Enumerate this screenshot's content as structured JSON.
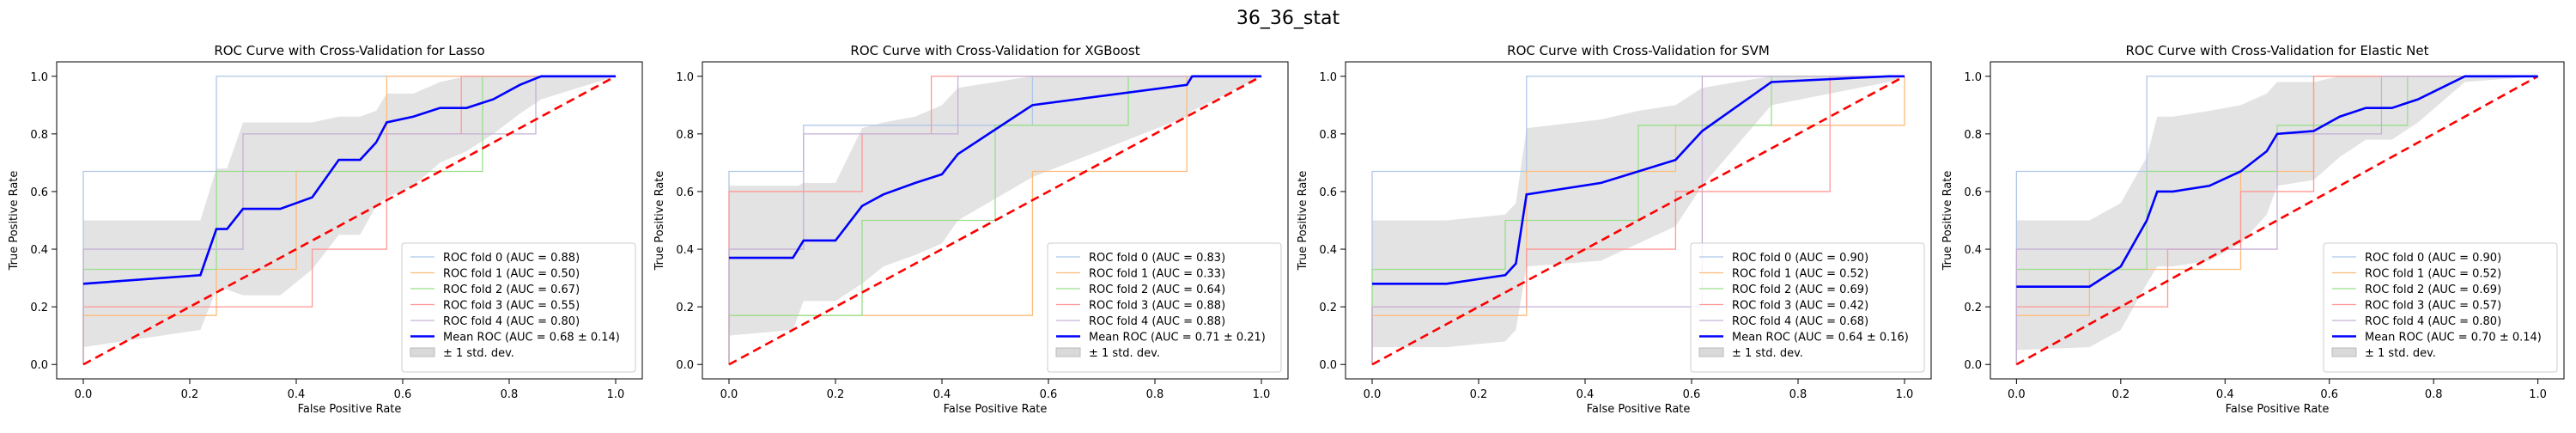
{
  "figure": {
    "suptitle": "36_36_stat"
  },
  "chart_data": [
    {
      "type": "line",
      "title": "ROC Curve with Cross-Validation for Lasso",
      "xlabel": "False Positive Rate",
      "ylabel": "True Positive Rate",
      "xlim": [
        -0.05,
        1.05
      ],
      "ylim": [
        -0.05,
        1.05
      ],
      "xticks": [
        "0.0",
        "0.2",
        "0.4",
        "0.6",
        "0.8",
        "1.0"
      ],
      "yticks": [
        "0.0",
        "0.2",
        "0.4",
        "0.6",
        "0.8",
        "1.0"
      ],
      "legend_position": "lower right",
      "series": [
        {
          "name": "ROC fold 0 (AUC = 0.88)",
          "color": "#aec7e8",
          "x": [
            0,
            0,
            0.25,
            0.25,
            0.55,
            0.55,
            1
          ],
          "y": [
            0,
            0.67,
            0.67,
            1,
            1,
            1,
            1
          ]
        },
        {
          "name": "ROC fold 1 (AUC = 0.50)",
          "color": "#ffbb78",
          "x": [
            0,
            0,
            0.25,
            0.25,
            0.4,
            0.4,
            0.57,
            0.57,
            1
          ],
          "y": [
            0,
            0.17,
            0.17,
            0.33,
            0.33,
            0.67,
            0.67,
            1,
            1
          ]
        },
        {
          "name": "ROC fold 2 (AUC = 0.67)",
          "color": "#98df8a",
          "x": [
            0,
            0,
            0.25,
            0.25,
            0.5,
            0.5,
            0.75,
            0.75,
            1
          ],
          "y": [
            0,
            0.33,
            0.33,
            0.67,
            0.67,
            0.67,
            0.67,
            1,
            1
          ]
        },
        {
          "name": "ROC fold 3 (AUC = 0.55)",
          "color": "#ff9896",
          "x": [
            0,
            0,
            0.14,
            0.14,
            0.43,
            0.43,
            0.57,
            0.57,
            0.71,
            0.71,
            1
          ],
          "y": [
            0,
            0.2,
            0.2,
            0.2,
            0.2,
            0.4,
            0.4,
            0.8,
            0.8,
            1,
            1
          ]
        },
        {
          "name": "ROC fold 4 (AUC = 0.80)",
          "color": "#c5b0d5",
          "x": [
            0,
            0,
            0.3,
            0.3,
            0.6,
            0.6,
            0.85,
            0.85,
            1
          ],
          "y": [
            0,
            0.4,
            0.4,
            0.8,
            0.8,
            0.8,
            0.8,
            1,
            1
          ]
        }
      ],
      "mean": {
        "name": "Mean ROC (AUC = 0.68 ± 0.14)",
        "color": "#0000ff",
        "x": [
          0,
          0.22,
          0.25,
          0.27,
          0.3,
          0.37,
          0.43,
          0.48,
          0.52,
          0.55,
          0.57,
          0.62,
          0.67,
          0.72,
          0.77,
          0.82,
          0.86,
          1
        ],
        "y": [
          0.28,
          0.31,
          0.47,
          0.47,
          0.54,
          0.54,
          0.58,
          0.71,
          0.71,
          0.77,
          0.84,
          0.86,
          0.89,
          0.89,
          0.92,
          0.97,
          1,
          1
        ]
      },
      "std": {
        "name": "± 1 std. dev.",
        "color": "#d9d9d9",
        "upper": [
          0.5,
          0.5,
          0.68,
          0.68,
          0.84,
          0.84,
          0.84,
          0.86,
          0.86,
          0.88,
          0.94,
          0.94,
          0.98,
          1,
          1,
          1,
          1,
          1
        ],
        "lower": [
          0.06,
          0.12,
          0.26,
          0.26,
          0.24,
          0.24,
          0.33,
          0.45,
          0.45,
          0.55,
          0.58,
          0.62,
          0.7,
          0.74,
          0.8,
          0.87,
          0.92,
          1
        ]
      },
      "chance": {
        "color": "#ff0000"
      }
    },
    {
      "type": "line",
      "title": "ROC Curve with Cross-Validation for XGBoost",
      "xlabel": "False Positive Rate",
      "ylabel": "True Positive Rate",
      "xlim": [
        -0.05,
        1.05
      ],
      "ylim": [
        -0.05,
        1.05
      ],
      "xticks": [
        "0.0",
        "0.2",
        "0.4",
        "0.6",
        "0.8",
        "1.0"
      ],
      "yticks": [
        "0.0",
        "0.2",
        "0.4",
        "0.6",
        "0.8",
        "1.0"
      ],
      "legend_position": "lower right",
      "series": [
        {
          "name": "ROC fold 0 (AUC = 0.83)",
          "color": "#aec7e8",
          "x": [
            0,
            0,
            0.14,
            0.14,
            0.43,
            0.43,
            0.57,
            0.57,
            1
          ],
          "y": [
            0,
            0.67,
            0.67,
            0.83,
            0.83,
            0.83,
            0.83,
            1,
            1
          ]
        },
        {
          "name": "ROC fold 1 (AUC = 0.33)",
          "color": "#ffbb78",
          "x": [
            0,
            0,
            0.57,
            0.57,
            0.86,
            0.86,
            1
          ],
          "y": [
            0,
            0.17,
            0.17,
            0.67,
            0.67,
            1,
            1
          ]
        },
        {
          "name": "ROC fold 2 (AUC = 0.64)",
          "color": "#98df8a",
          "x": [
            0,
            0,
            0.25,
            0.25,
            0.5,
            0.5,
            0.75,
            0.75,
            1
          ],
          "y": [
            0,
            0.17,
            0.17,
            0.5,
            0.5,
            0.83,
            0.83,
            1,
            1
          ]
        },
        {
          "name": "ROC fold 3 (AUC = 0.88)",
          "color": "#ff9896",
          "x": [
            0,
            0,
            0.25,
            0.25,
            0.38,
            0.38,
            1
          ],
          "y": [
            0,
            0.6,
            0.6,
            0.8,
            0.8,
            1,
            1
          ]
        },
        {
          "name": "ROC fold 4 (AUC = 0.88)",
          "color": "#c5b0d5",
          "x": [
            0,
            0,
            0.14,
            0.14,
            0.43,
            0.43,
            1
          ],
          "y": [
            0,
            0.4,
            0.4,
            0.8,
            0.8,
            1,
            1
          ]
        }
      ],
      "mean": {
        "name": "Mean ROC (AUC = 0.71 ± 0.21)",
        "color": "#0000ff",
        "x": [
          0,
          0.12,
          0.13,
          0.14,
          0.2,
          0.25,
          0.29,
          0.35,
          0.4,
          0.43,
          0.57,
          0.86,
          0.87,
          1
        ],
        "y": [
          0.37,
          0.37,
          0.4,
          0.43,
          0.43,
          0.55,
          0.59,
          0.63,
          0.66,
          0.73,
          0.9,
          0.97,
          1,
          1
        ]
      },
      "std": {
        "name": "± 1 std. dev.",
        "color": "#d9d9d9",
        "upper": [
          0.62,
          0.62,
          0.62,
          0.63,
          0.63,
          0.82,
          0.84,
          0.86,
          0.9,
          0.96,
          1,
          1,
          1,
          1
        ],
        "lower": [
          0.1,
          0.12,
          0.17,
          0.22,
          0.22,
          0.28,
          0.34,
          0.38,
          0.42,
          0.5,
          0.65,
          0.86,
          0.88,
          1
        ]
      },
      "chance": {
        "color": "#ff0000"
      }
    },
    {
      "type": "line",
      "title": "ROC Curve with Cross-Validation for SVM",
      "xlabel": "False Positive Rate",
      "ylabel": "True Positive Rate",
      "xlim": [
        -0.05,
        1.05
      ],
      "ylim": [
        -0.05,
        1.05
      ],
      "xticks": [
        "0.0",
        "0.2",
        "0.4",
        "0.6",
        "0.8",
        "1.0"
      ],
      "yticks": [
        "0.0",
        "0.2",
        "0.4",
        "0.6",
        "0.8",
        "1.0"
      ],
      "legend_position": "lower right",
      "series": [
        {
          "name": "ROC fold 0 (AUC = 0.90)",
          "color": "#aec7e8",
          "x": [
            0,
            0,
            0.29,
            0.29,
            1
          ],
          "y": [
            0,
            0.67,
            0.67,
            1,
            1
          ]
        },
        {
          "name": "ROC fold 1 (AUC = 0.52)",
          "color": "#ffbb78",
          "x": [
            0,
            0,
            0.29,
            0.29,
            0.57,
            0.57,
            1,
            1
          ],
          "y": [
            0,
            0.17,
            0.17,
            0.67,
            0.67,
            0.83,
            0.83,
            1
          ]
        },
        {
          "name": "ROC fold 2 (AUC = 0.69)",
          "color": "#98df8a",
          "x": [
            0,
            0,
            0.25,
            0.25,
            0.5,
            0.5,
            0.75,
            0.75,
            1
          ],
          "y": [
            0,
            0.33,
            0.33,
            0.5,
            0.5,
            0.83,
            0.83,
            1,
            1
          ]
        },
        {
          "name": "ROC fold 3 (AUC = 0.42)",
          "color": "#ff9896",
          "x": [
            0,
            0,
            0.29,
            0.29,
            0.57,
            0.57,
            0.86,
            0.86,
            1
          ],
          "y": [
            0,
            0.2,
            0.2,
            0.4,
            0.4,
            0.6,
            0.6,
            1,
            1
          ]
        },
        {
          "name": "ROC fold 4 (AUC = 0.68)",
          "color": "#c5b0d5",
          "x": [
            0,
            0,
            0.62,
            0.62,
            1
          ],
          "y": [
            0,
            0.2,
            0.2,
            1,
            1
          ]
        }
      ],
      "mean": {
        "name": "Mean ROC (AUC = 0.64 ± 0.16)",
        "color": "#0000ff",
        "x": [
          0,
          0.14,
          0.25,
          0.27,
          0.29,
          0.43,
          0.5,
          0.57,
          0.62,
          0.75,
          0.97,
          1
        ],
        "y": [
          0.28,
          0.28,
          0.31,
          0.35,
          0.59,
          0.63,
          0.67,
          0.71,
          0.81,
          0.98,
          1,
          1
        ]
      },
      "std": {
        "name": "± 1 std. dev.",
        "color": "#d9d9d9",
        "upper": [
          0.5,
          0.5,
          0.52,
          0.56,
          0.82,
          0.85,
          0.88,
          0.9,
          0.96,
          1,
          1,
          1
        ],
        "lower": [
          0.06,
          0.06,
          0.08,
          0.12,
          0.34,
          0.36,
          0.42,
          0.48,
          0.62,
          0.9,
          0.98,
          1
        ]
      },
      "chance": {
        "color": "#ff0000"
      }
    },
    {
      "type": "line",
      "title": "ROC Curve with Cross-Validation for Elastic Net",
      "xlabel": "False Positive Rate",
      "ylabel": "True Positive Rate",
      "xlim": [
        -0.05,
        1.05
      ],
      "ylim": [
        -0.05,
        1.05
      ],
      "xticks": [
        "0.0",
        "0.2",
        "0.4",
        "0.6",
        "0.8",
        "1.0"
      ],
      "yticks": [
        "0.0",
        "0.2",
        "0.4",
        "0.6",
        "0.8",
        "1.0"
      ],
      "legend_position": "lower right",
      "series": [
        {
          "name": "ROC fold 0 (AUC = 0.90)",
          "color": "#aec7e8",
          "x": [
            0,
            0,
            0.25,
            0.25,
            1
          ],
          "y": [
            0,
            0.67,
            0.67,
            1,
            1
          ]
        },
        {
          "name": "ROC fold 1 (AUC = 0.52)",
          "color": "#ffbb78",
          "x": [
            0,
            0,
            0.14,
            0.14,
            0.43,
            0.43,
            0.57,
            0.57,
            1
          ],
          "y": [
            0,
            0.17,
            0.17,
            0.33,
            0.33,
            0.67,
            0.67,
            1,
            1
          ]
        },
        {
          "name": "ROC fold 2 (AUC = 0.69)",
          "color": "#98df8a",
          "x": [
            0,
            0,
            0.25,
            0.25,
            0.5,
            0.5,
            0.75,
            0.75,
            1
          ],
          "y": [
            0,
            0.33,
            0.33,
            0.67,
            0.67,
            0.83,
            0.83,
            1,
            1
          ]
        },
        {
          "name": "ROC fold 3 (AUC = 0.57)",
          "color": "#ff9896",
          "x": [
            0,
            0,
            0.29,
            0.29,
            0.43,
            0.43,
            0.57,
            0.57,
            1
          ],
          "y": [
            0,
            0.2,
            0.2,
            0.4,
            0.4,
            0.6,
            0.6,
            1,
            1
          ]
        },
        {
          "name": "ROC fold 4 (AUC = 0.80)",
          "color": "#c5b0d5",
          "x": [
            0,
            0,
            0.5,
            0.5,
            0.7,
            0.7,
            1
          ],
          "y": [
            0,
            0.4,
            0.4,
            0.8,
            0.8,
            1,
            1
          ]
        }
      ],
      "mean": {
        "name": "Mean ROC (AUC = 0.70 ± 0.14)",
        "color": "#0000ff",
        "x": [
          0,
          0.14,
          0.2,
          0.25,
          0.27,
          0.3,
          0.37,
          0.43,
          0.48,
          0.5,
          0.57,
          0.62,
          0.67,
          0.72,
          0.77,
          0.86,
          1
        ],
        "y": [
          0.27,
          0.27,
          0.34,
          0.5,
          0.6,
          0.6,
          0.62,
          0.67,
          0.74,
          0.8,
          0.81,
          0.86,
          0.89,
          0.89,
          0.92,
          1,
          1
        ]
      },
      "std": {
        "name": "± 1 std. dev.",
        "color": "#d9d9d9",
        "upper": [
          0.5,
          0.5,
          0.56,
          0.72,
          0.86,
          0.86,
          0.88,
          0.9,
          0.94,
          0.98,
          0.98,
          1,
          1,
          1,
          1,
          1,
          1
        ],
        "lower": [
          0.05,
          0.06,
          0.12,
          0.28,
          0.34,
          0.34,
          0.36,
          0.42,
          0.52,
          0.62,
          0.64,
          0.72,
          0.78,
          0.78,
          0.84,
          0.98,
          1
        ]
      },
      "chance": {
        "color": "#ff0000"
      }
    }
  ]
}
